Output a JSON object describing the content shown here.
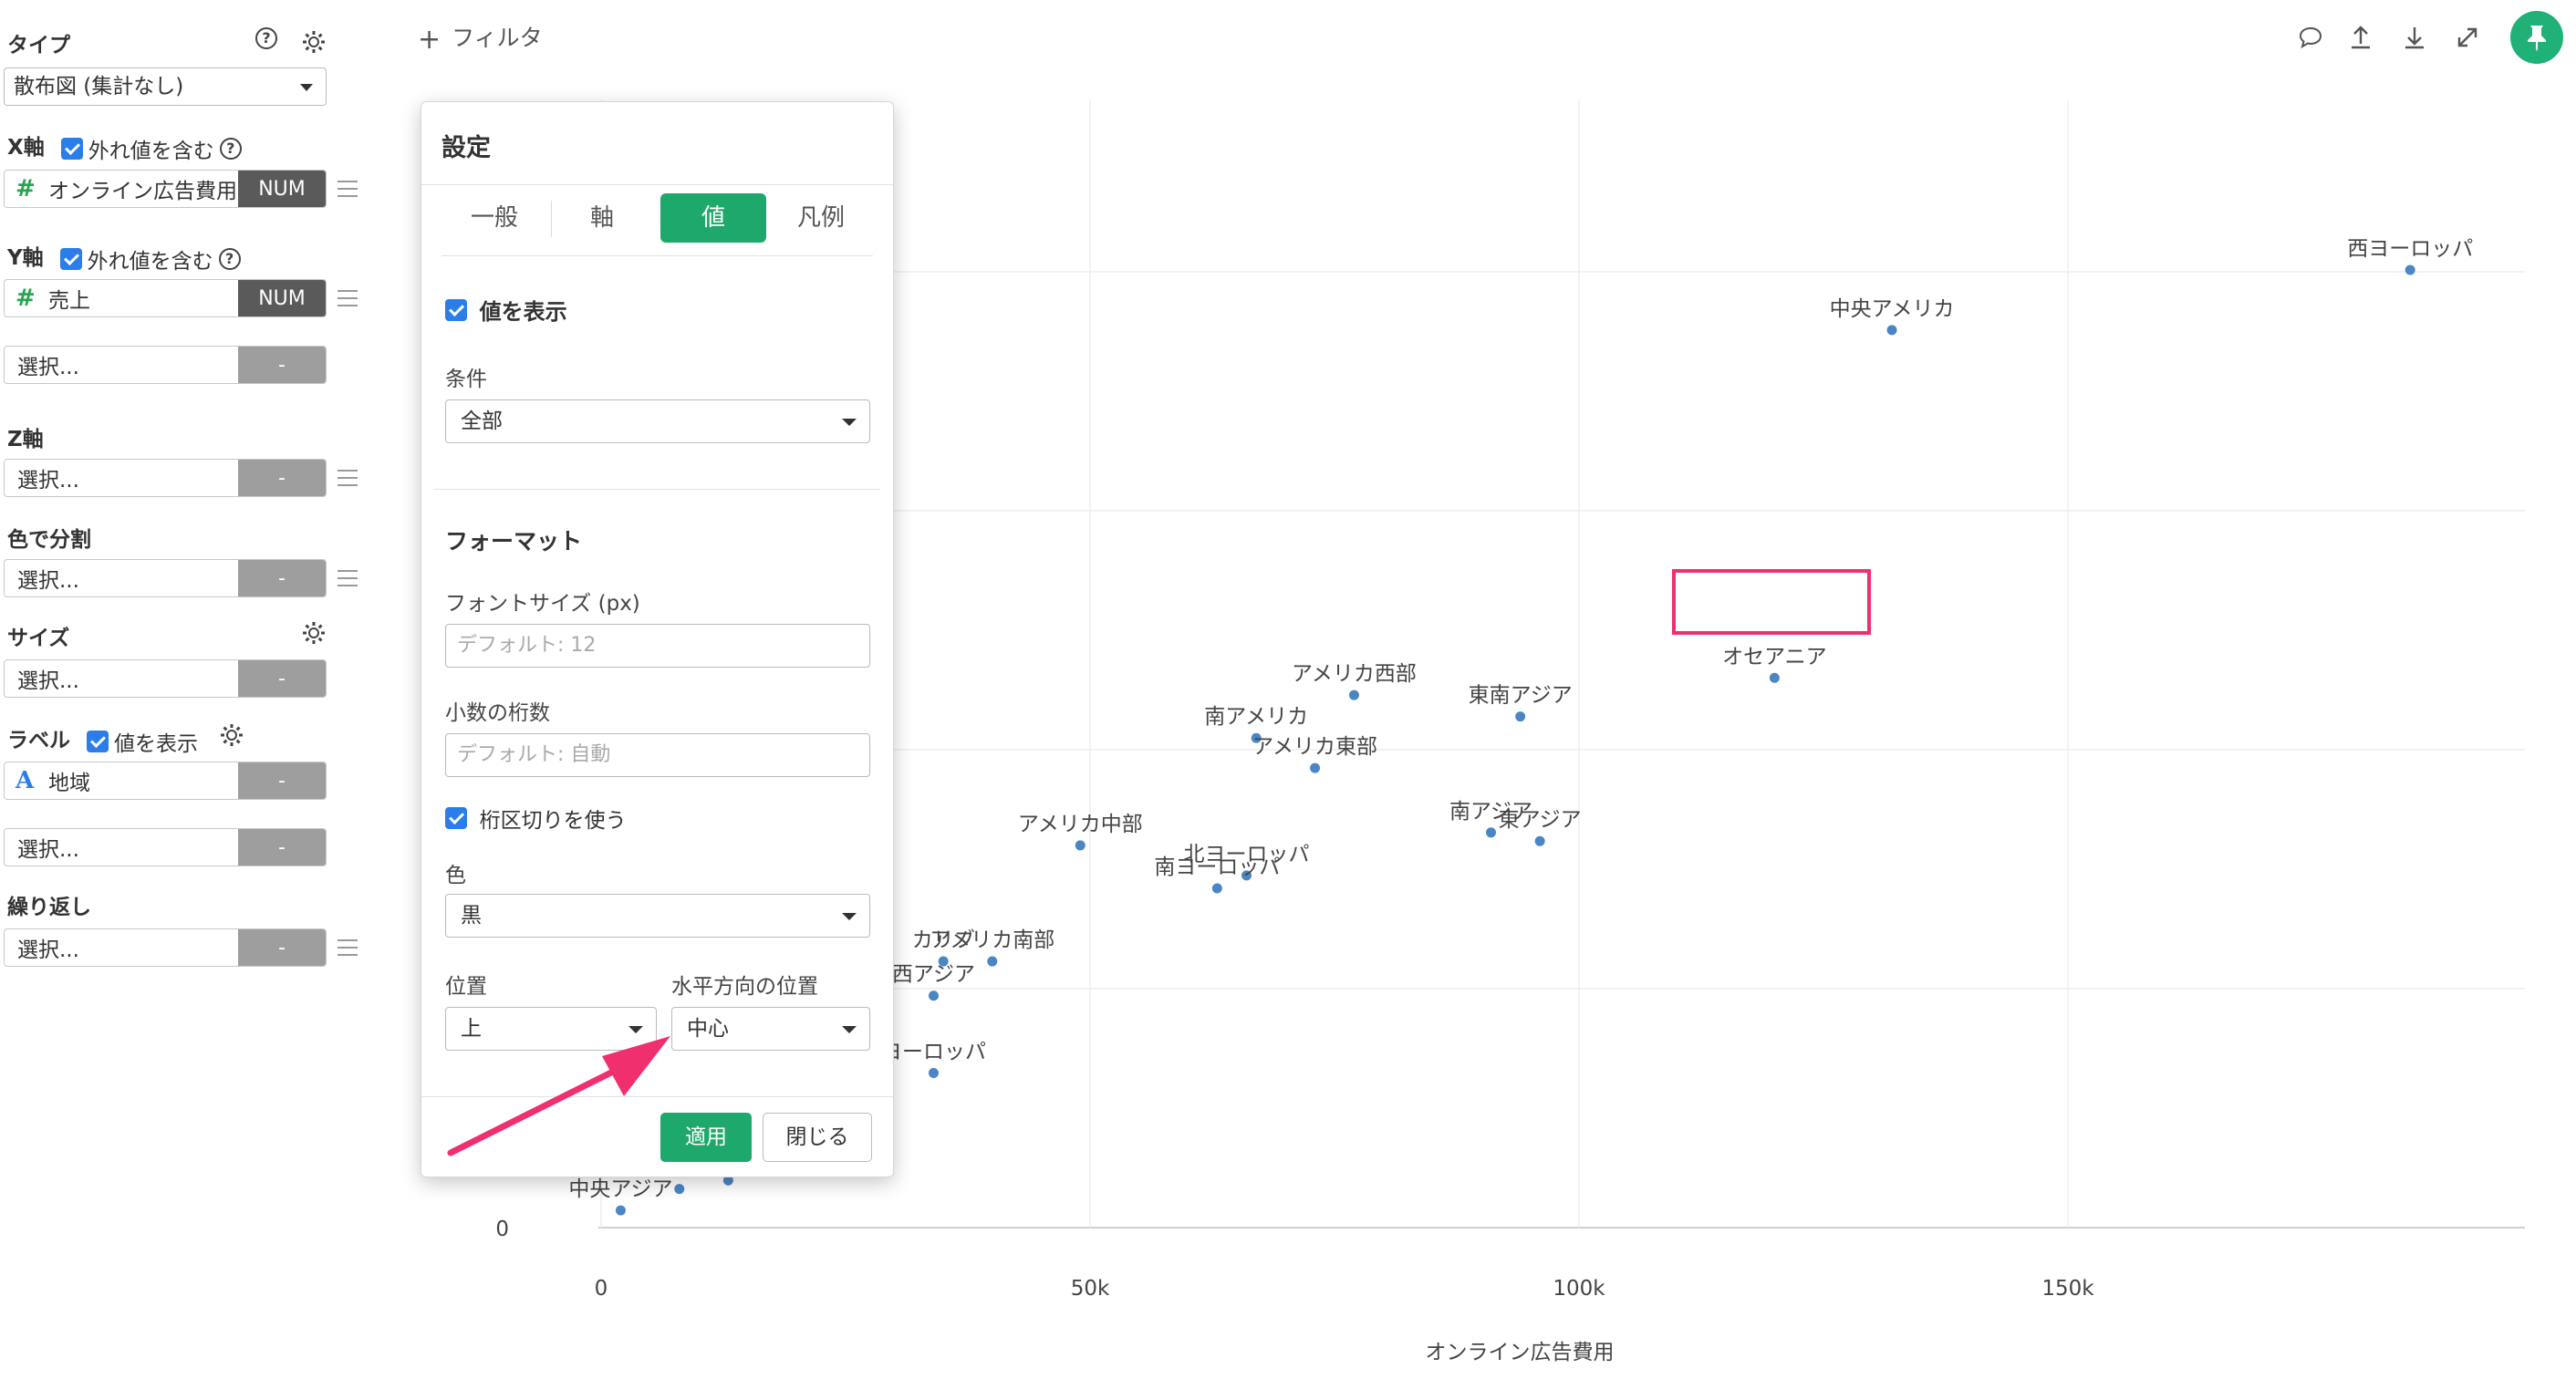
{
  "sidebar": {
    "type": {
      "label": "タイプ",
      "value": "散布図 (集計なし)"
    },
    "x_axis": {
      "label": "X軸",
      "outlier_label": "外れ値を含む",
      "field": "オンライン広告費用",
      "field_type": "NUM"
    },
    "y_axis": {
      "label": "Y軸",
      "outlier_label": "外れ値を含む",
      "field": "売上",
      "field_type": "NUM",
      "extra_placeholder": "選択...",
      "extra_type": "-"
    },
    "z_axis": {
      "label": "Z軸",
      "placeholder": "選択...",
      "type": "-"
    },
    "color": {
      "label": "色で分割",
      "placeholder": "選択...",
      "type": "-"
    },
    "size": {
      "label": "サイズ",
      "placeholder": "選択...",
      "type": "-"
    },
    "label": {
      "label": "ラベル",
      "show_label": "値を表示",
      "field": "地域",
      "field_type": "-",
      "extra_placeholder": "選択...",
      "extra_type": "-"
    },
    "repeat": {
      "label": "繰り返し",
      "placeholder": "選択...",
      "type": "-"
    }
  },
  "topbar": {
    "filter_label": "フィルタ",
    "icons": [
      "comment-icon",
      "upload-icon",
      "download-icon",
      "expand-icon",
      "pin-icon"
    ],
    "accent": "#1fb177"
  },
  "dialog": {
    "title": "設定",
    "tabs": [
      "一般",
      "軸",
      "値",
      "凡例"
    ],
    "active_tab": "値",
    "show_values": "値を表示",
    "condition": {
      "label": "条件",
      "value": "全部"
    },
    "format_heading": "フォーマット",
    "font_size": {
      "label": "フォントサイズ (px)",
      "placeholder": "デフォルト: 12"
    },
    "decimals": {
      "label": "小数の桁数",
      "placeholder": "デフォルト: 自動"
    },
    "thousands": "桁区切りを使う",
    "color": {
      "label": "色",
      "value": "黒"
    },
    "position": {
      "label": "位置",
      "value": "上"
    },
    "h_position": {
      "label": "水平方向の位置",
      "value": "中心"
    },
    "apply": "適用",
    "close": "閉じる",
    "accent": "#1fa86b"
  },
  "chart_data": {
    "type": "scatter",
    "xlabel": "オンライン広告費用",
    "ylabel": "",
    "xlim": [
      -30000,
      197000
    ],
    "x_ticks": [
      "0",
      "50k",
      "100k",
      "150k"
    ],
    "x_tick_values": [
      0,
      50000,
      100000,
      150000
    ],
    "y_ticks": [
      "0"
    ],
    "point_color": "#4a86c5",
    "points": [
      {
        "label": "西ヨーロッパ",
        "x": 185000,
        "y": 223
      },
      {
        "label": "中央アメリカ",
        "x": 132000,
        "y": 209
      },
      {
        "label": "オセアニア",
        "x": 120000,
        "y": 128,
        "highlighted": true
      },
      {
        "label": "アメリカ西部",
        "x": 77000,
        "y": 124
      },
      {
        "label": "東南アジア",
        "x": 94000,
        "y": 119
      },
      {
        "label": "南アメリカ",
        "x": 67000,
        "y": 114
      },
      {
        "label": "アメリカ東部",
        "x": 73000,
        "y": 107
      },
      {
        "label": "南アジア",
        "x": 91000,
        "y": 92
      },
      {
        "label": "東アジア",
        "x": 96000,
        "y": 90
      },
      {
        "label": "アメリカ中部",
        "x": 49000,
        "y": 89
      },
      {
        "label": "北ヨーロッパ",
        "x": 66000,
        "y": 82
      },
      {
        "label": "南ヨーロッパ",
        "x": 63000,
        "y": 79
      },
      {
        "label": "カリブ",
        "x": 35000,
        "y": 62
      },
      {
        "label": "アメリカ南部",
        "x": 40000,
        "y": 62
      },
      {
        "label": "西アジア",
        "x": 34000,
        "y": 54
      },
      {
        "label": "ヨーロッパ",
        "x": 34000,
        "y": 36
      },
      {
        "label": "中央アジア",
        "x": 2000,
        "y": 4
      },
      {
        "label": "",
        "x": 8000,
        "y": 9
      },
      {
        "label": "",
        "x": 13000,
        "y": 11
      }
    ],
    "grid": true
  },
  "annotation": {
    "highlight_color": "#f0306e",
    "arrow_color": "#f0306e"
  }
}
